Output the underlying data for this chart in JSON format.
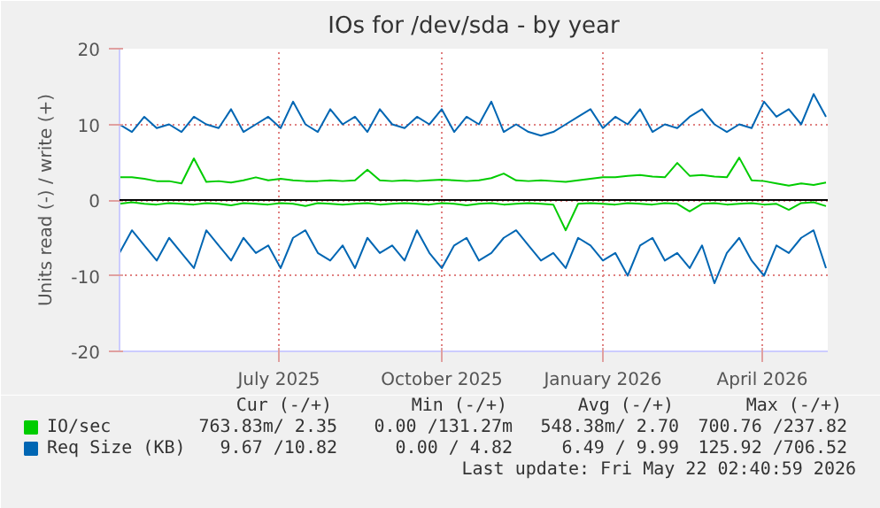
{
  "chart_data": {
    "type": "line",
    "title": "IOs for /dev/sda - by year",
    "ylabel": "Units read (-) / write (+)",
    "x": [
      "2025-04-17",
      "2025-04-24",
      "2025-05-01",
      "2025-05-08",
      "2025-05-15",
      "2025-05-22",
      "2025-05-29",
      "2025-06-05",
      "2025-06-12",
      "2025-06-19",
      "2025-06-26",
      "2025-07-03",
      "2025-07-10",
      "2025-07-17",
      "2025-07-24",
      "2025-07-31",
      "2025-08-07",
      "2025-08-14",
      "2025-08-21",
      "2025-08-28",
      "2025-09-04",
      "2025-09-11",
      "2025-09-18",
      "2025-09-25",
      "2025-10-02",
      "2025-10-09",
      "2025-10-16",
      "2025-10-23",
      "2025-10-30",
      "2025-11-06",
      "2025-11-13",
      "2025-11-20",
      "2025-11-27",
      "2025-12-04",
      "2025-12-11",
      "2025-12-18",
      "2025-12-25",
      "2026-01-01",
      "2026-01-08",
      "2026-01-15",
      "2026-01-22",
      "2026-01-29",
      "2026-02-05",
      "2026-02-12",
      "2026-02-19",
      "2026-02-26",
      "2026-03-05",
      "2026-03-12",
      "2026-03-19",
      "2026-03-26",
      "2026-04-02",
      "2026-04-09",
      "2026-04-16",
      "2026-04-23",
      "2026-04-30",
      "2026-05-07",
      "2026-05-14",
      "2026-05-21"
    ],
    "series": [
      {
        "name": "IO/sec",
        "color": "#00cc00",
        "values": [
          3,
          3,
          2.8,
          2.5,
          2.5,
          2.2,
          5.5,
          2.4,
          2.5,
          2.3,
          2.6,
          3,
          2.6,
          2.8,
          2.6,
          2.5,
          2.5,
          2.6,
          2.5,
          2.6,
          4,
          2.6,
          2.5,
          2.6,
          2.5,
          2.6,
          2.7,
          2.6,
          2.5,
          2.6,
          2.9,
          3.5,
          2.6,
          2.5,
          2.6,
          2.5,
          2.4,
          2.6,
          2.8,
          3,
          3,
          3.2,
          3.3,
          3.1,
          3,
          4.9,
          3.2,
          3.3,
          3.1,
          3,
          5.6,
          2.6,
          2.5,
          2.2,
          1.9,
          2.2,
          2,
          2.3
        ]
      },
      {
        "name": "Req Size (KB)",
        "color": "#0066b3",
        "values": [
          10,
          9,
          11,
          9.5,
          10,
          9,
          11,
          10,
          9.5,
          12,
          9,
          10,
          11,
          9.5,
          13,
          10,
          9,
          12,
          10,
          11,
          9,
          12,
          10,
          9.5,
          11,
          10,
          12,
          9,
          11,
          10,
          13,
          9,
          10,
          9,
          8.5,
          9,
          10,
          11,
          12,
          9.5,
          11,
          10,
          12,
          9,
          10,
          9.5,
          11,
          12,
          10,
          9,
          10,
          9.5,
          13,
          11,
          12,
          10,
          14,
          11
        ]
      },
      {
        "color": "#00cc00",
        "values": [
          -0.5,
          -0.3,
          -0.5,
          -0.6,
          -0.4,
          -0.5,
          -0.6,
          -0.4,
          -0.5,
          -0.7,
          -0.4,
          -0.5,
          -0.6,
          -0.4,
          -0.5,
          -0.8,
          -0.4,
          -0.5,
          -0.6,
          -0.5,
          -0.4,
          -0.6,
          -0.5,
          -0.4,
          -0.5,
          -0.6,
          -0.4,
          -0.5,
          -0.7,
          -0.5,
          -0.4,
          -0.6,
          -0.5,
          -0.4,
          -0.5,
          -0.6,
          -4,
          -0.5,
          -0.4,
          -0.5,
          -0.6,
          -0.4,
          -0.5,
          -0.6,
          -0.4,
          -0.5,
          -1.5,
          -0.5,
          -0.4,
          -0.6,
          -0.5,
          -0.4,
          -0.6,
          -0.5,
          -1.3,
          -0.4,
          -0.3,
          -0.8
        ]
      },
      {
        "color": "#0066b3",
        "values": [
          -7,
          -4,
          -6,
          -8,
          -5,
          -7,
          -9,
          -4,
          -6,
          -8,
          -5,
          -7,
          -6,
          -9,
          -5,
          -4,
          -7,
          -8,
          -6,
          -9,
          -5,
          -7,
          -6,
          -8,
          -4,
          -7,
          -9,
          -6,
          -5,
          -8,
          -7,
          -5,
          -4,
          -6,
          -8,
          -7,
          -9,
          -5,
          -6,
          -8,
          -7,
          -10,
          -6,
          -5,
          -8,
          -7,
          -9,
          -6,
          -11,
          -7,
          -5,
          -8,
          -10,
          -6,
          -7,
          -5,
          -4,
          -9
        ]
      }
    ],
    "xlim": [
      "2025-04-17",
      "2026-05-22"
    ],
    "xticks": [
      {
        "value": "2025-07-16",
        "label": "July 2025"
      },
      {
        "value": "2025-10-16",
        "label": "October 2025"
      },
      {
        "value": "2026-01-15",
        "label": "January 2026"
      },
      {
        "value": "2026-04-15",
        "label": "April 2026"
      }
    ],
    "ylim": [
      -20,
      20
    ],
    "yticks": [
      -20,
      -10,
      0,
      10,
      20
    ],
    "ref_lines": [
      {
        "axis": "y",
        "value": 0,
        "color": "#000000"
      }
    ],
    "grid": true,
    "legend": "bottom",
    "marker": "none",
    "line_style": "solid",
    "annotations": [
      "Cur (-/+)",
      "Min (-/+)",
      "Avg (-/+)",
      "Max (-/+)",
      "763.83m/ 2.35",
      "0.00 /131.27m",
      "548.38m/ 2.70",
      "700.76 /237.82",
      "9.67 /10.82",
      "0.00 / 4.82",
      "6.49 / 9.99",
      "125.92 /706.52",
      "Last update: Fri May 22 02:40:59 2026"
    ]
  }
}
